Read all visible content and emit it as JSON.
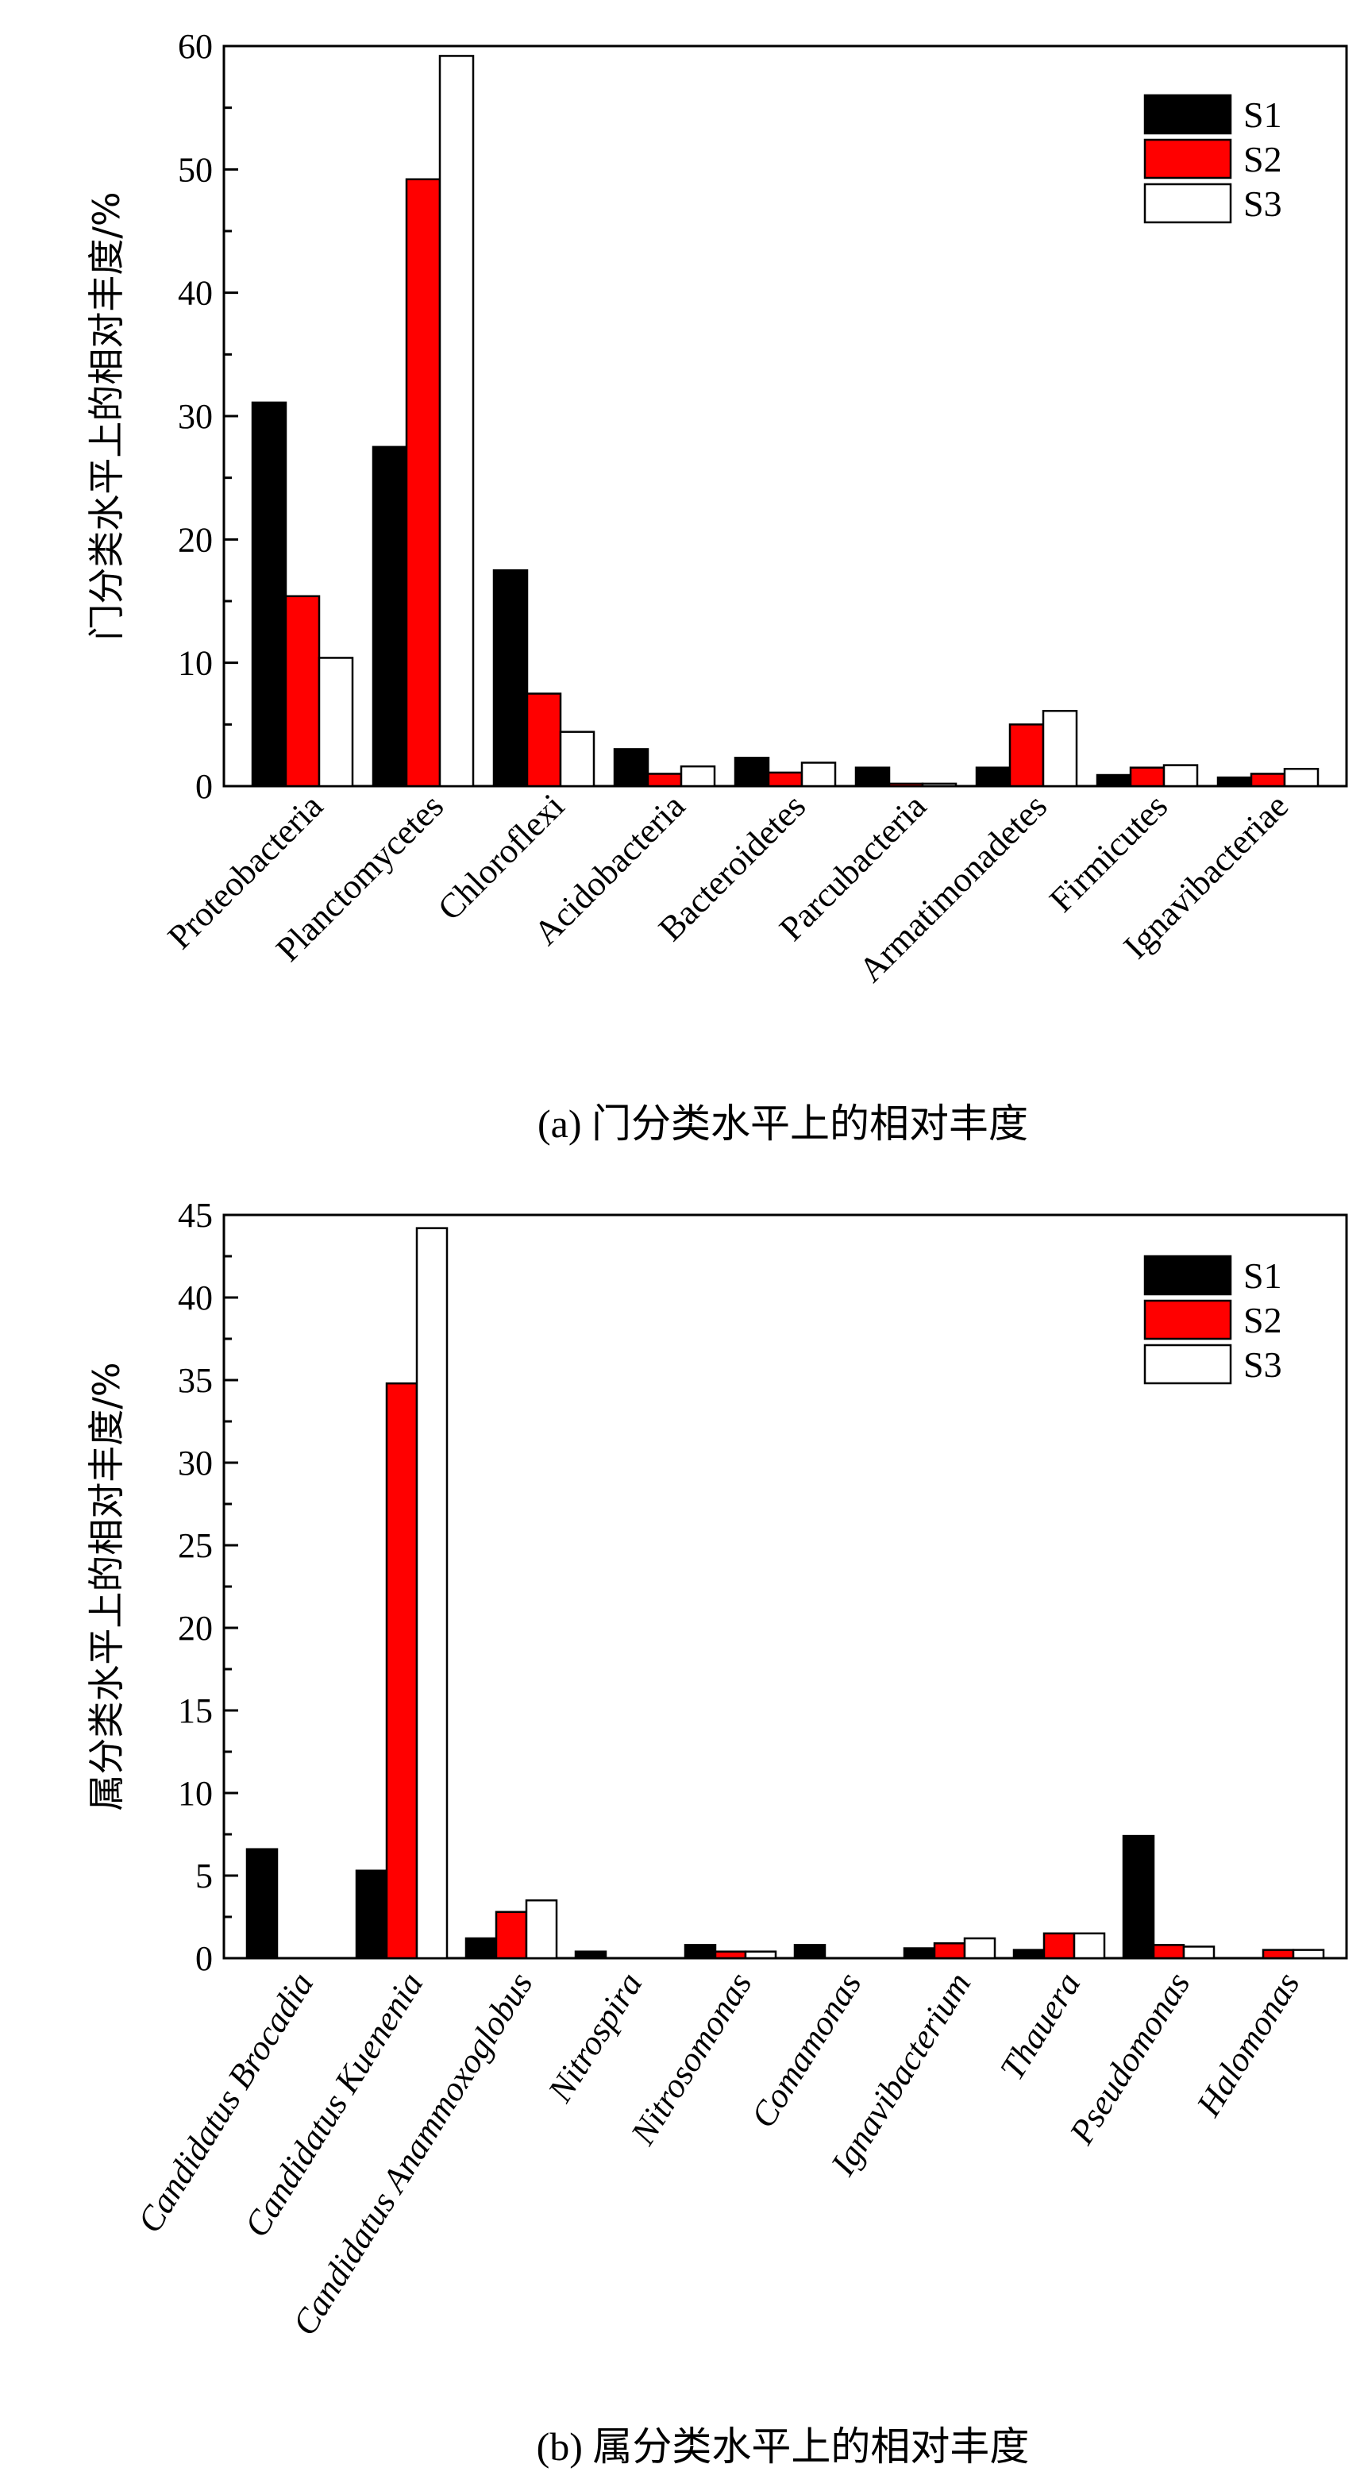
{
  "colors": {
    "S1": "#000000",
    "S2": "#ff0000",
    "S3": "#ffffff",
    "outline": "#000000"
  },
  "chart_data": [
    {
      "type": "bar",
      "caption": "(a) 门分类水平上的相对丰度",
      "ylabel": "门分类水平上的相对丰度/%",
      "xlabel": "",
      "ylim": [
        0,
        60
      ],
      "yticks": [
        0,
        10,
        20,
        30,
        40,
        50,
        60
      ],
      "categories": [
        "Proteobacteria",
        "Planctomycetes",
        "Chloroflexi",
        "Acidobacteria",
        "Bacteroidetes",
        "Parcubacteria",
        "Armatimonadetes",
        "Firmicutes",
        "Ignavibacteriae"
      ],
      "italic_categories": false,
      "legend": [
        "S1",
        "S2",
        "S3"
      ],
      "series": [
        {
          "name": "S1",
          "values": [
            31.1,
            27.5,
            17.5,
            3.0,
            2.3,
            1.5,
            1.5,
            0.9,
            0.7
          ]
        },
        {
          "name": "S2",
          "values": [
            15.4,
            49.2,
            7.5,
            1.0,
            1.1,
            0.2,
            5.0,
            1.5,
            1.0
          ]
        },
        {
          "name": "S3",
          "values": [
            10.4,
            59.2,
            4.4,
            1.6,
            1.9,
            0.2,
            6.1,
            1.7,
            1.4
          ]
        }
      ]
    },
    {
      "type": "bar",
      "caption": "(b) 属分类水平上的相对丰度",
      "ylabel": "属分类水平上的相对丰度/%",
      "xlabel": "",
      "ylim": [
        0,
        45
      ],
      "yticks": [
        0,
        5,
        10,
        15,
        20,
        25,
        30,
        35,
        40,
        45
      ],
      "categories": [
        "Candidatus Brocadia",
        "Candidatus Kuenenia",
        "Candidatus Anammoxoglobus",
        "Nitrospira",
        "Nitrosomonas",
        "Comamonas",
        "Ignavibacterium",
        "Thauera",
        "Pseudomonas",
        "Halomonas"
      ],
      "italic_categories": true,
      "legend": [
        "S1",
        "S2",
        "S3"
      ],
      "series": [
        {
          "name": "S1",
          "values": [
            6.6,
            5.3,
            1.2,
            0.4,
            0.8,
            0.8,
            0.6,
            0.5,
            7.4,
            0.0
          ]
        },
        {
          "name": "S2",
          "values": [
            0.0,
            34.8,
            2.8,
            0.0,
            0.4,
            0.0,
            0.9,
            1.5,
            0.8,
            0.5
          ]
        },
        {
          "name": "S3",
          "values": [
            0.0,
            44.2,
            3.5,
            0.0,
            0.4,
            0.0,
            1.2,
            1.5,
            0.7,
            0.5
          ]
        }
      ]
    }
  ]
}
